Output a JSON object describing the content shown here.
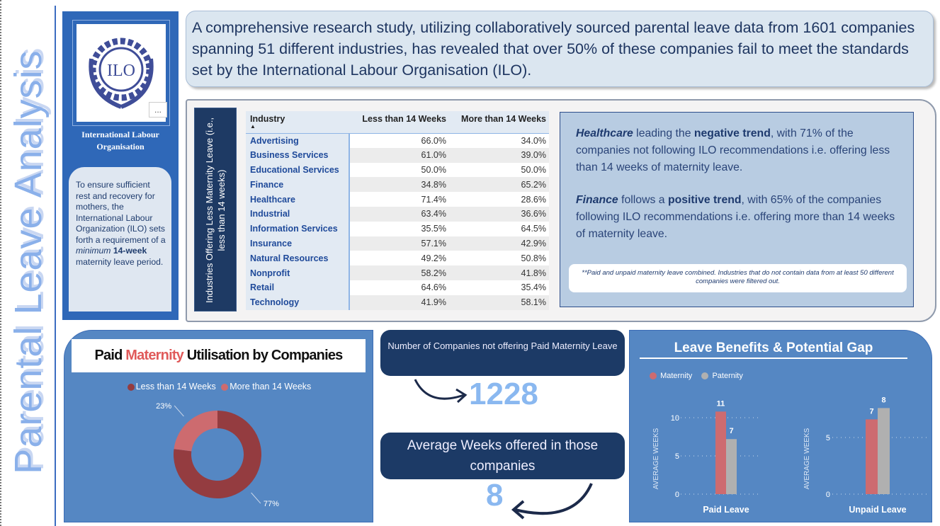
{
  "side_title": "Parental Leave Analysis",
  "org": {
    "logo_text": "ILO",
    "name_line1": "International Labour",
    "name_line2": "Organisation",
    "more_label": "..."
  },
  "ilo_card": {
    "text1": "To ensure sufficient rest and recovery for mothers, the International Labour Organization (ILO) sets forth a requirement of a ",
    "italic": "minimum",
    "bold": " 14-week",
    "text2": " maternity leave period."
  },
  "header": {
    "text": "A comprehensive research study, utilizing collaboratively sourced parental leave data from 1601 companies spanning 51 different industries, has revealed that over 50% of these companies fail to meet the standards set by the International Labour Organisation (ILO)."
  },
  "table": {
    "side_label": "Industries Offering Less Maternity Leave (i.e., less than 14 weeks)",
    "columns": [
      "Industry",
      "Less than 14 Weeks",
      "More than 14 Weeks"
    ],
    "sort_icon": "sort-ascending-icon",
    "rows": [
      [
        "Advertising",
        "66.0%",
        "34.0%"
      ],
      [
        "Business Services",
        "61.0%",
        "39.0%"
      ],
      [
        "Educational Services",
        "50.0%",
        "50.0%"
      ],
      [
        "Finance",
        "34.8%",
        "65.2%"
      ],
      [
        "Healthcare",
        "71.4%",
        "28.6%"
      ],
      [
        "Industrial",
        "63.4%",
        "36.6%"
      ],
      [
        "Information Services",
        "35.5%",
        "64.5%"
      ],
      [
        "Insurance",
        "57.1%",
        "42.9%"
      ],
      [
        "Natural Resources",
        "49.2%",
        "50.8%"
      ],
      [
        "Nonprofit",
        "58.2%",
        "41.8%"
      ],
      [
        "Retail",
        "64.6%",
        "35.4%"
      ],
      [
        "Technology",
        "41.9%",
        "58.1%"
      ]
    ]
  },
  "insights": {
    "p1": {
      "i": "Healthcare",
      "a": " leading the ",
      "b": "negative trend",
      "c": ", with 71% of the companies not following ILO recommendations i.e. offering less than 14 weeks of maternity leave."
    },
    "p2": {
      "i": "Finance",
      "a": " follows a ",
      "b": "positive trend",
      "c": ", with 65% of the companies following ILO recommendations i.e. offering more than 14 weeks of maternity leave."
    },
    "note": "**Paid and unpaid maternity leave combined. Industries that do not contain data from at least 50 different companies were filtered out."
  },
  "kpi": {
    "label1": "Number of Companies not offering Paid Maternity Leave",
    "value1": "1228",
    "label2": "Average Weeks offered in those companies",
    "value2": "8"
  },
  "colors": {
    "maternity": "#cd6b70",
    "paternity": "#b0b0b0",
    "donut_less": "#943c40",
    "donut_more": "#cd6b6f",
    "panel": "#5587c3",
    "dark": "#1c3a66"
  },
  "chart_data": [
    {
      "type": "pie",
      "title_parts": [
        "Paid ",
        "Maternity",
        " Utilisation by Companies"
      ],
      "categories": [
        "Less than 14 Weeks",
        "More than 14 Weeks"
      ],
      "values": [
        77,
        23
      ],
      "labels": [
        "77%",
        "23%"
      ],
      "legend": "top"
    },
    {
      "type": "bar",
      "title": "Leave Benefits & Potential Gap",
      "legend": "top-left",
      "series_names": [
        "Maternity",
        "Paternity"
      ],
      "panels": [
        {
          "category": "Paid Leave",
          "ylabel": "AVERAGE WEEKS",
          "yticks": [
            0,
            5,
            10
          ],
          "ylim": [
            0,
            11.5
          ],
          "values": [
            10.8,
            7.2
          ],
          "labels": [
            "11",
            "7"
          ]
        },
        {
          "category": "Unpaid Leave",
          "ylabel": "AVERAGE WEEKS",
          "yticks": [
            0,
            5
          ],
          "ylim": [
            0,
            8.5
          ],
          "values": [
            6.6,
            7.6
          ],
          "labels": [
            "7",
            "8"
          ]
        }
      ]
    }
  ]
}
